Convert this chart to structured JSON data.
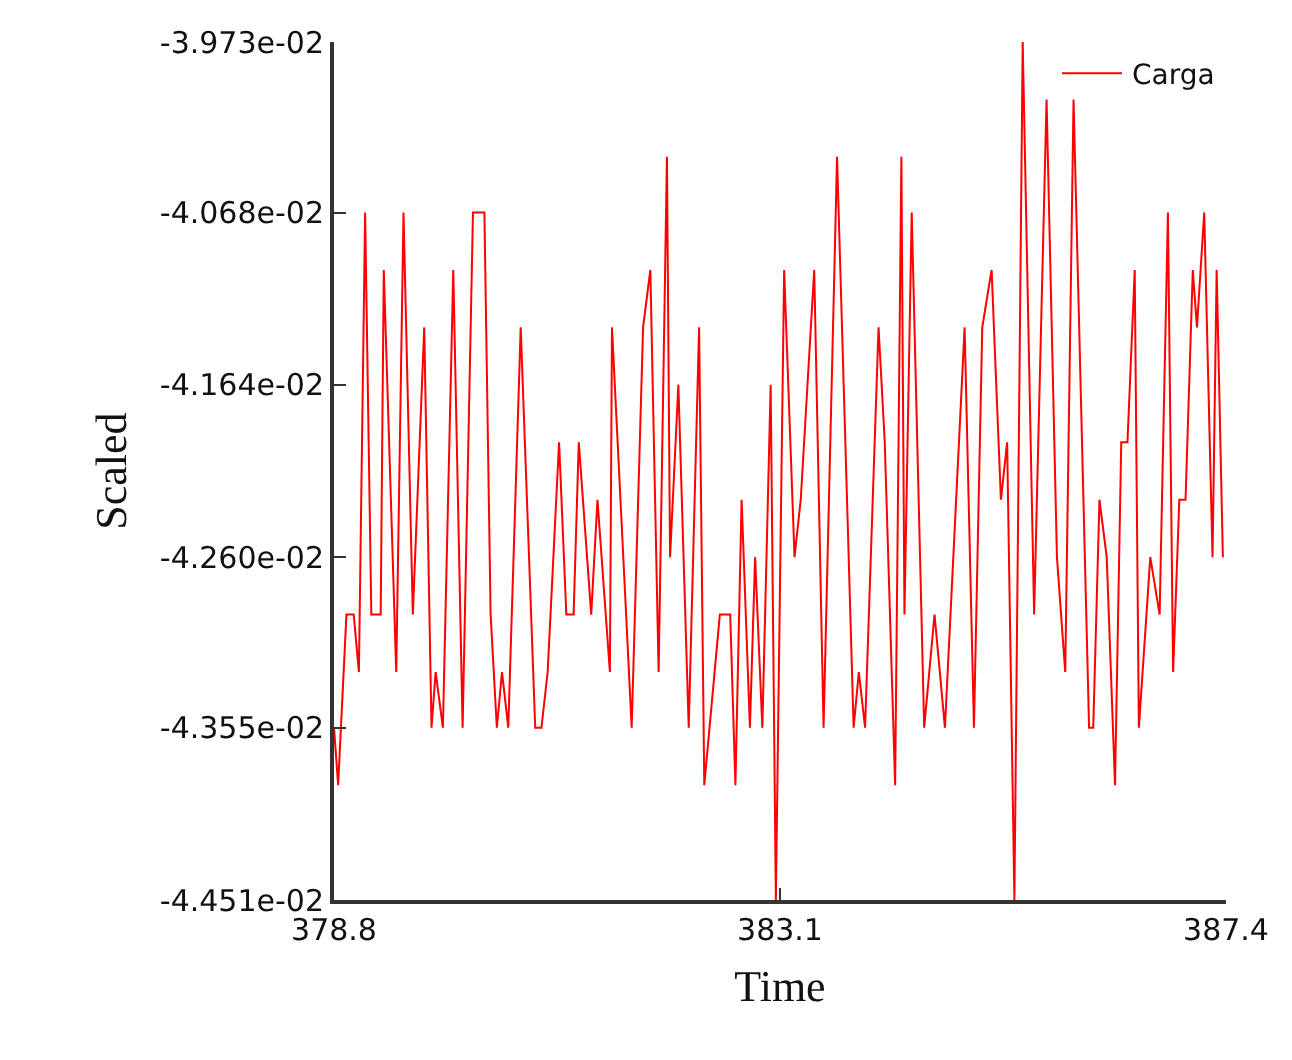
{
  "chart_data": {
    "type": "line",
    "xlabel": "Time",
    "ylabel": "Scaled",
    "xlim": [
      378.8,
      387.4
    ],
    "xticks": [
      378.8,
      383.1,
      387.4
    ],
    "ylim": [
      -0.04451,
      -0.03973
    ],
    "yticks": [
      {
        "value": -0.04451,
        "label": "-4.451e-02"
      },
      {
        "value": -0.04355,
        "label": "-4.355e-02"
      },
      {
        "value": -0.0426,
        "label": "-4.260e-02"
      },
      {
        "value": -0.04164,
        "label": "-4.164e-02"
      },
      {
        "value": -0.04068,
        "label": "-4.068e-02"
      },
      {
        "value": -0.03973,
        "label": "-3.973e-02"
      }
    ],
    "legend": "top right",
    "marker": "none",
    "line_style": "solid",
    "series": [
      {
        "name": "Carga",
        "color": "#ff0000",
        "x": [
          378.8,
          378.84,
          378.92,
          378.99,
          379.04,
          379.1,
          379.16,
          379.25,
          379.28,
          379.4,
          379.47,
          379.56,
          379.67,
          379.74,
          379.78,
          379.85,
          379.95,
          380.04,
          380.14,
          380.25,
          380.31,
          380.37,
          380.42,
          380.48,
          380.6,
          380.74,
          380.8,
          380.86,
          380.97,
          381.04,
          381.11,
          381.16,
          381.28,
          381.34,
          381.46,
          381.48,
          381.67,
          381.78,
          381.85,
          381.93,
          382.01,
          382.04,
          382.12,
          382.22,
          382.32,
          382.37,
          382.52,
          382.62,
          382.67,
          382.73,
          382.81,
          382.86,
          382.93,
          383.01,
          383.06,
          383.14,
          383.24,
          383.3,
          383.43,
          383.52,
          383.65,
          383.81,
          383.86,
          383.92,
          384.05,
          384.11,
          384.21,
          384.27,
          384.3,
          384.37,
          384.49,
          384.59,
          384.69,
          384.88,
          384.97,
          385.05,
          385.14,
          385.23,
          385.29,
          385.36,
          385.44,
          385.55,
          385.67,
          385.77,
          385.85,
          385.93,
          386.08,
          386.12,
          386.18,
          386.25,
          386.33,
          386.39,
          386.45,
          386.52,
          386.56,
          386.67,
          386.76,
          386.84,
          386.89,
          386.95,
          387.01,
          387.08,
          387.12,
          387.19,
          387.27,
          387.31,
          387.37
        ],
        "values": [
          -0.04355,
          -0.04387,
          -0.04292,
          -0.04292,
          -0.04324,
          -0.04068,
          -0.04292,
          -0.04292,
          -0.041,
          -0.04324,
          -0.04068,
          -0.04292,
          -0.04132,
          -0.04355,
          -0.04324,
          -0.04355,
          -0.041,
          -0.04355,
          -0.04068,
          -0.04068,
          -0.04292,
          -0.04355,
          -0.04324,
          -0.04355,
          -0.04132,
          -0.04355,
          -0.04355,
          -0.04324,
          -0.04196,
          -0.04292,
          -0.04292,
          -0.04196,
          -0.04292,
          -0.04228,
          -0.04324,
          -0.04132,
          -0.04355,
          -0.04132,
          -0.041,
          -0.04324,
          -0.04037,
          -0.0426,
          -0.04164,
          -0.04355,
          -0.04132,
          -0.04387,
          -0.04292,
          -0.04292,
          -0.04387,
          -0.04228,
          -0.04355,
          -0.0426,
          -0.04355,
          -0.04164,
          -0.04451,
          -0.041,
          -0.0426,
          -0.04228,
          -0.041,
          -0.04355,
          -0.04037,
          -0.04355,
          -0.04324,
          -0.04355,
          -0.04132,
          -0.04196,
          -0.04387,
          -0.04037,
          -0.04292,
          -0.04068,
          -0.04355,
          -0.04292,
          -0.04355,
          -0.04132,
          -0.04355,
          -0.04132,
          -0.041,
          -0.04228,
          -0.04196,
          -0.04451,
          -0.03973,
          -0.04292,
          -0.04005,
          -0.0426,
          -0.04324,
          -0.04005,
          -0.04355,
          -0.04355,
          -0.04228,
          -0.0426,
          -0.04387,
          -0.04196,
          -0.04196,
          -0.041,
          -0.04355,
          -0.0426,
          -0.04292,
          -0.04068,
          -0.04324,
          -0.04228,
          -0.04228,
          -0.041,
          -0.04132,
          -0.04068,
          -0.0426,
          -0.041,
          -0.0426
        ]
      }
    ]
  }
}
